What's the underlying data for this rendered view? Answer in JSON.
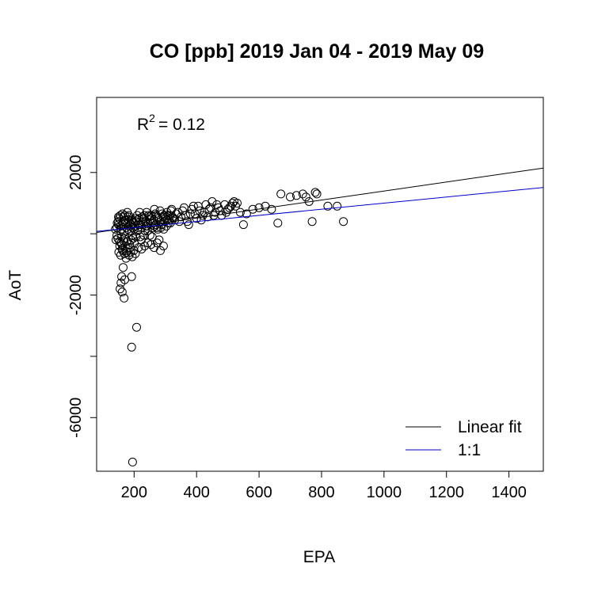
{
  "chart_data": {
    "type": "scatter",
    "title": "CO [ppb] 2019 Jan 04 - 2019 May 09",
    "xlabel": "EPA",
    "ylabel": "AoT",
    "xlim": [
      80,
      1510
    ],
    "ylim": [
      -7750,
      4450
    ],
    "xticks": [
      200,
      400,
      600,
      800,
      1000,
      1200,
      1400
    ],
    "yticks": [
      -6000,
      -2000,
      2000
    ],
    "ytick_minor": [
      -4000,
      0
    ],
    "annotation": {
      "r2_prefix": "R",
      "r2_exp": "2",
      "r2_value": "= 0.12"
    },
    "legend": {
      "position": "bottom-right",
      "entries": [
        {
          "label": "Linear fit",
          "color": "#000000"
        },
        {
          "label": "1:1",
          "color": "#0000cd"
        }
      ]
    },
    "lines": [
      {
        "name": "Linear fit",
        "color": "#000000",
        "slope": 1.47,
        "intercept": -75
      },
      {
        "name": "1:1",
        "color": "#0000cd",
        "slope": 1.0,
        "intercept": 0
      }
    ],
    "points": [
      [
        150,
        300
      ],
      [
        155,
        100
      ],
      [
        160,
        -100
      ],
      [
        145,
        200
      ],
      [
        165,
        400
      ],
      [
        170,
        600
      ],
      [
        158,
        -300
      ],
      [
        162,
        -500
      ],
      [
        175,
        200
      ],
      [
        180,
        350
      ],
      [
        185,
        100
      ],
      [
        190,
        -200
      ],
      [
        152,
        500
      ],
      [
        148,
        -150
      ],
      [
        168,
        50
      ],
      [
        172,
        -400
      ],
      [
        178,
        700
      ],
      [
        182,
        450
      ],
      [
        188,
        250
      ],
      [
        195,
        -50
      ],
      [
        200,
        150
      ],
      [
        205,
        400
      ],
      [
        210,
        600
      ],
      [
        215,
        300
      ],
      [
        220,
        -100
      ],
      [
        225,
        200
      ],
      [
        230,
        500
      ],
      [
        235,
        100
      ],
      [
        240,
        700
      ],
      [
        245,
        350
      ],
      [
        250,
        450
      ],
      [
        255,
        600
      ],
      [
        260,
        200
      ],
      [
        265,
        800
      ],
      [
        270,
        300
      ],
      [
        275,
        550
      ],
      [
        280,
        -200
      ],
      [
        285,
        400
      ],
      [
        290,
        650
      ],
      [
        295,
        150
      ],
      [
        300,
        500
      ],
      [
        305,
        700
      ],
      [
        310,
        350
      ],
      [
        315,
        600
      ],
      [
        320,
        800
      ],
      [
        330,
        450
      ],
      [
        340,
        700
      ],
      [
        350,
        550
      ],
      [
        360,
        850
      ],
      [
        370,
        400
      ],
      [
        380,
        650
      ],
      [
        390,
        900
      ],
      [
        400,
        500
      ],
      [
        410,
        750
      ],
      [
        420,
        600
      ],
      [
        430,
        950
      ],
      [
        440,
        800
      ],
      [
        450,
        1050
      ],
      [
        460,
        700
      ],
      [
        470,
        850
      ],
      [
        480,
        600
      ],
      [
        490,
        950
      ],
      [
        500,
        800
      ],
      [
        510,
        900
      ],
      [
        520,
        1050
      ],
      [
        530,
        1000
      ],
      [
        550,
        300
      ],
      [
        580,
        800
      ],
      [
        600,
        850
      ],
      [
        620,
        900
      ],
      [
        640,
        800
      ],
      [
        660,
        350
      ],
      [
        670,
        1300
      ],
      [
        700,
        1200
      ],
      [
        720,
        1250
      ],
      [
        740,
        1300
      ],
      [
        750,
        1200
      ],
      [
        760,
        1050
      ],
      [
        770,
        400
      ],
      [
        780,
        1350
      ],
      [
        785,
        1300
      ],
      [
        820,
        900
      ],
      [
        850,
        900
      ],
      [
        870,
        400
      ],
      [
        160,
        -1400
      ],
      [
        158,
        -1600
      ],
      [
        162,
        -1900
      ],
      [
        165,
        -1100
      ],
      [
        168,
        -2100
      ],
      [
        155,
        -1800
      ],
      [
        170,
        -1500
      ],
      [
        192,
        -1400
      ],
      [
        192,
        -3700
      ],
      [
        208,
        -3050
      ],
      [
        195,
        -7450
      ],
      [
        140,
        150
      ],
      [
        142,
        -200
      ],
      [
        146,
        350
      ],
      [
        150,
        550
      ],
      [
        154,
        -400
      ],
      [
        157,
        250
      ],
      [
        163,
        650
      ],
      [
        167,
        -250
      ],
      [
        171,
        450
      ],
      [
        176,
        -600
      ],
      [
        181,
        550
      ],
      [
        186,
        -350
      ],
      [
        191,
        400
      ],
      [
        196,
        200
      ],
      [
        201,
        -300
      ],
      [
        207,
        500
      ],
      [
        212,
        100
      ],
      [
        218,
        700
      ],
      [
        223,
        -200
      ],
      [
        228,
        400
      ],
      [
        233,
        600
      ],
      [
        238,
        250
      ],
      [
        243,
        100
      ],
      [
        248,
        550
      ],
      [
        253,
        350
      ],
      [
        258,
        -100
      ],
      [
        263,
        450
      ],
      [
        268,
        650
      ],
      [
        273,
        200
      ],
      [
        278,
        500
      ],
      [
        283,
        750
      ],
      [
        288,
        300
      ],
      [
        293,
        550
      ],
      [
        298,
        400
      ],
      [
        303,
        250
      ],
      [
        308,
        600
      ],
      [
        313,
        450
      ],
      [
        318,
        750
      ],
      [
        323,
        550
      ],
      [
        335,
        650
      ],
      [
        345,
        400
      ],
      [
        355,
        750
      ],
      [
        365,
        600
      ],
      [
        375,
        300
      ],
      [
        385,
        800
      ],
      [
        395,
        650
      ],
      [
        405,
        900
      ],
      [
        415,
        450
      ],
      [
        425,
        700
      ],
      [
        435,
        550
      ],
      [
        445,
        850
      ],
      [
        455,
        600
      ],
      [
        465,
        950
      ],
      [
        475,
        750
      ],
      [
        495,
        700
      ],
      [
        505,
        850
      ],
      [
        515,
        1000
      ],
      [
        525,
        900
      ],
      [
        540,
        700
      ],
      [
        560,
        650
      ],
      [
        145,
        -50
      ],
      [
        149,
        400
      ],
      [
        153,
        -250
      ],
      [
        156,
        600
      ],
      [
        159,
        150
      ],
      [
        161,
        -350
      ],
      [
        164,
        300
      ],
      [
        166,
        550
      ],
      [
        169,
        -150
      ],
      [
        173,
        350
      ],
      [
        177,
        -250
      ],
      [
        179,
        150
      ],
      [
        183,
        600
      ],
      [
        187,
        -450
      ],
      [
        189,
        300
      ],
      [
        193,
        450
      ],
      [
        197,
        -150
      ],
      [
        199,
        350
      ],
      [
        203,
        250
      ],
      [
        206,
        -100
      ],
      [
        209,
        450
      ],
      [
        213,
        200
      ],
      [
        217,
        500
      ],
      [
        221,
        300
      ],
      [
        226,
        550
      ],
      [
        231,
        -50
      ],
      [
        236,
        400
      ],
      [
        241,
        250
      ],
      [
        246,
        600
      ],
      [
        251,
        -50
      ],
      [
        256,
        500
      ],
      [
        261,
        350
      ],
      [
        266,
        250
      ],
      [
        271,
        600
      ],
      [
        276,
        150
      ],
      [
        286,
        200
      ],
      [
        296,
        600
      ],
      [
        306,
        450
      ],
      [
        316,
        350
      ],
      [
        326,
        500
      ],
      [
        151,
        -600
      ],
      [
        157,
        -700
      ],
      [
        163,
        -550
      ],
      [
        169,
        -650
      ],
      [
        174,
        -800
      ],
      [
        179,
        -500
      ],
      [
        184,
        -700
      ],
      [
        189,
        -600
      ],
      [
        194,
        -750
      ],
      [
        199,
        -550
      ],
      [
        204,
        -650
      ],
      [
        214,
        -450
      ],
      [
        224,
        -500
      ],
      [
        234,
        -400
      ],
      [
        244,
        -300
      ],
      [
        254,
        -350
      ],
      [
        264,
        -450
      ],
      [
        274,
        -300
      ],
      [
        284,
        -550
      ],
      [
        294,
        -400
      ]
    ]
  }
}
